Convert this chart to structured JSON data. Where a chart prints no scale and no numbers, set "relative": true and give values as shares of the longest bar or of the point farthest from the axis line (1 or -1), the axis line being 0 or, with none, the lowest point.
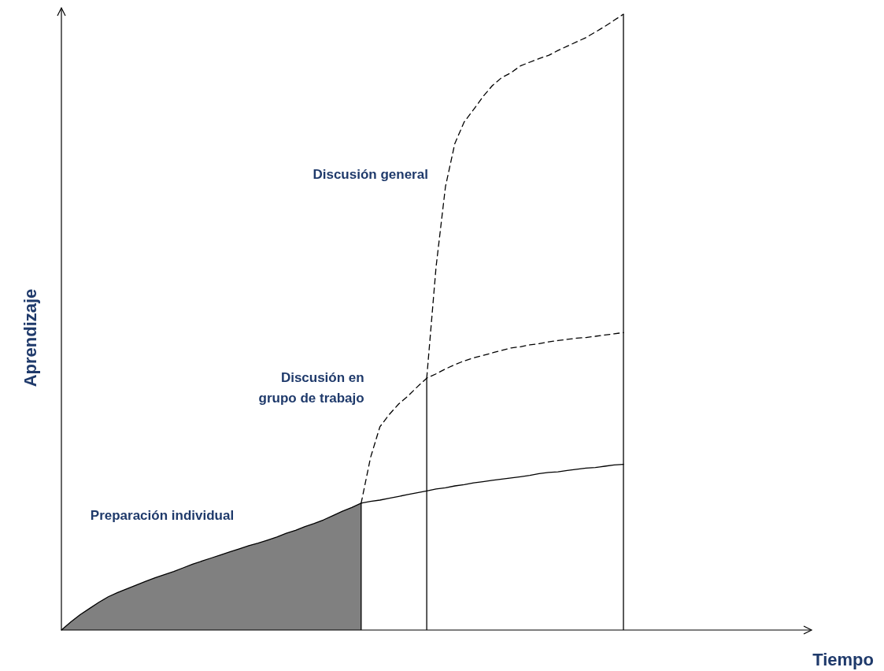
{
  "chart_data": {
    "type": "line",
    "relative": true,
    "annotations": [
      "Tiempo"
    ],
    "ylabel": "Aprendizaje",
    "categories": [
      null,
      null,
      null,
      null,
      null,
      null,
      null,
      null,
      null,
      null,
      null,
      null,
      null,
      null,
      null,
      null,
      null,
      null,
      null,
      null,
      null,
      null,
      null,
      null,
      null,
      null,
      null,
      null,
      null,
      null,
      null,
      null,
      null,
      null,
      null,
      null,
      null,
      null,
      null,
      null,
      null,
      null,
      null,
      null,
      null,
      null,
      null,
      null,
      null,
      null,
      null,
      null,
      null,
      null,
      null,
      null,
      null,
      null,
      null,
      null,
      null
    ],
    "series": [
      {
        "name": "Preparación individual",
        "color": "#000000",
        "line_style": "solid",
        "values": [
          0,
          0.013,
          0.025,
          0.035,
          0.045,
          0.054,
          0.061,
          0.067,
          0.073,
          0.079,
          0.085,
          0.09,
          0.095,
          0.101,
          0.107,
          0.112,
          0.117,
          0.122,
          0.127,
          0.132,
          0.137,
          0.141,
          0.146,
          0.151,
          0.157,
          0.162,
          0.168,
          0.173,
          0.179,
          0.186,
          0.193,
          0.199,
          0.206,
          0.209,
          0.211,
          0.214,
          0.217,
          0.22,
          0.223,
          0.226,
          0.229,
          0.231,
          0.234,
          0.236,
          0.239,
          0.241,
          0.243,
          0.245,
          0.247,
          0.249,
          0.251,
          0.254,
          0.256,
          0.257,
          0.259,
          0.261,
          0.263,
          0.264,
          0.266,
          0.268,
          0.269
        ]
      },
      {
        "name": "Discusión en\ngrupo de trabajo",
        "color": "#000000",
        "line_style": "dashed",
        "values": [
          null,
          null,
          null,
          null,
          null,
          null,
          null,
          null,
          null,
          null,
          null,
          null,
          null,
          null,
          null,
          null,
          null,
          null,
          null,
          null,
          null,
          null,
          null,
          null,
          null,
          null,
          null,
          null,
          null,
          null,
          null,
          null,
          0.206,
          0.28,
          0.33,
          0.35,
          0.367,
          0.38,
          0.395,
          0.409,
          0.416,
          0.424,
          0.431,
          0.437,
          0.442,
          0.446,
          0.45,
          0.454,
          0.458,
          0.46,
          0.463,
          0.465,
          0.468,
          0.47,
          0.472,
          0.474,
          0.475,
          0.477,
          0.479,
          0.481,
          0.483
        ]
      },
      {
        "name": "Discusión general",
        "color": "#000000",
        "line_style": "dashed",
        "values": [
          null,
          null,
          null,
          null,
          null,
          null,
          null,
          null,
          null,
          null,
          null,
          null,
          null,
          null,
          null,
          null,
          null,
          null,
          null,
          null,
          null,
          null,
          null,
          null,
          null,
          null,
          null,
          null,
          null,
          null,
          null,
          null,
          null,
          null,
          null,
          null,
          null,
          null,
          null,
          0.409,
          0.59,
          0.72,
          0.79,
          0.825,
          0.845,
          0.866,
          0.884,
          0.897,
          0.905,
          0.916,
          0.922,
          0.928,
          0.933,
          0.941,
          0.948,
          0.955,
          0.962,
          0.971,
          0.98,
          0.99,
          1
        ]
      }
    ]
  }
}
